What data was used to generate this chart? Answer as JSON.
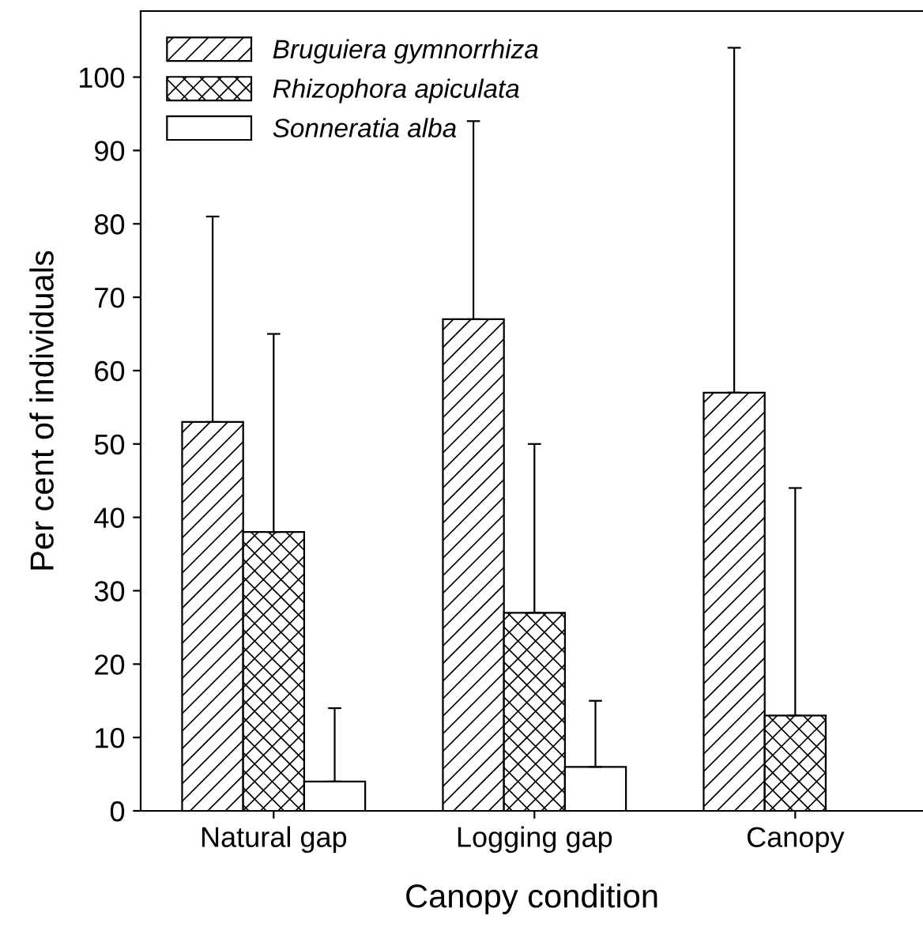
{
  "chart_data": {
    "type": "bar",
    "xlabel": "Canopy condition",
    "ylabel": "Per cent of individuals",
    "categories": [
      "Natural gap",
      "Logging gap",
      "Canopy"
    ],
    "series": [
      {
        "name": "Bruguiera gymnorrhiza",
        "color": "#000000",
        "values": [
          53,
          67,
          57
        ],
        "errors": [
          [
            53,
            81
          ],
          [
            67,
            94
          ],
          [
            57,
            104
          ]
        ]
      },
      {
        "name": "Rhizophora apiculata",
        "color": "#000000",
        "values": [
          38,
          27,
          13
        ],
        "errors": [
          [
            38,
            65
          ],
          [
            27,
            50
          ],
          [
            13,
            44
          ]
        ]
      },
      {
        "name": "Sonneratia alba",
        "color": "#000000",
        "values": [
          4,
          6,
          0
        ],
        "errors": [
          [
            4,
            14
          ],
          [
            6,
            15
          ],
          null
        ]
      }
    ],
    "ylim": [
      0,
      109
    ],
    "yticks": [
      0,
      10,
      20,
      30,
      40,
      50,
      60,
      70,
      80,
      90,
      100
    ],
    "grid": false,
    "legend": "top left"
  }
}
